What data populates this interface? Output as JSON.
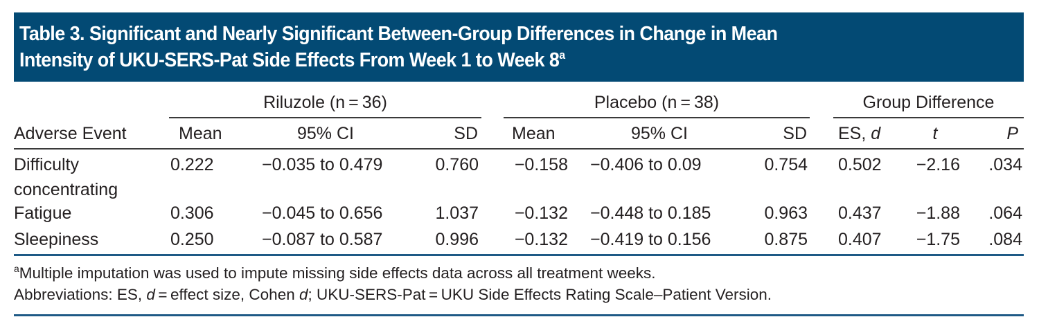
{
  "title": {
    "line1": "Table 3. Significant and Nearly Significant Between-Group Differences in Change in Mean",
    "line2": "Intensity of UKU-SERS-Pat Side Effects From Week 1 to Week 8",
    "footnote_marker": "a"
  },
  "group_headers": {
    "riluzole": "Riluzole (n = 36)",
    "placebo": "Placebo (n = 38)",
    "group_difference": "Group Difference"
  },
  "columns": {
    "adverse_event": "Adverse Event",
    "ril_mean": "Mean",
    "ril_ci": "95% CI",
    "ril_sd": "SD",
    "pla_mean": "Mean",
    "pla_ci": "95% CI",
    "pla_sd": "SD",
    "es_prefix": "ES, ",
    "es_italic": "d",
    "t": "t",
    "p": "P"
  },
  "rows": [
    {
      "event_line1": "Difficulty",
      "event_line2": "concentrating",
      "ril_mean": "0.222",
      "ril_ci": "−0.035 to 0.479",
      "ril_sd": "0.760",
      "pla_mean": "−0.158",
      "pla_ci": "−0.406 to 0.09",
      "pla_sd": "0.754",
      "es": "0.502",
      "t": "−2.16",
      "p": ".034"
    },
    {
      "event_line1": "Fatigue",
      "event_line2": "",
      "ril_mean": "0.306",
      "ril_ci": "−0.045 to 0.656",
      "ril_sd": "1.037",
      "pla_mean": "−0.132",
      "pla_ci": "−0.448 to 0.185",
      "pla_sd": "0.963",
      "es": "0.437",
      "t": "−1.88",
      "p": ".064"
    },
    {
      "event_line1": "Sleepiness",
      "event_line2": "",
      "ril_mean": "0.250",
      "ril_ci": "−0.087 to 0.587",
      "ril_sd": "0.996",
      "pla_mean": "−0.132",
      "pla_ci": "−0.419 to 0.156",
      "pla_sd": "0.875",
      "es": "0.407",
      "t": "−1.75",
      "p": ".084"
    }
  ],
  "footnotes": {
    "a_marker": "a",
    "a_text": "Multiple imputation was used to impute missing side effects data across all treatment weeks.",
    "abbrev_1": "Abbreviations: ES, ",
    "abbrev_d1": "d",
    "abbrev_2": " = effect size, Cohen ",
    "abbrev_d2": "d",
    "abbrev_3": "; UKU-SERS-Pat = UKU Side Effects Rating Scale–Patient Version."
  },
  "colors": {
    "title_bar": "#034a74",
    "rule_blue": "#1e5a86",
    "text": "#231f20"
  }
}
